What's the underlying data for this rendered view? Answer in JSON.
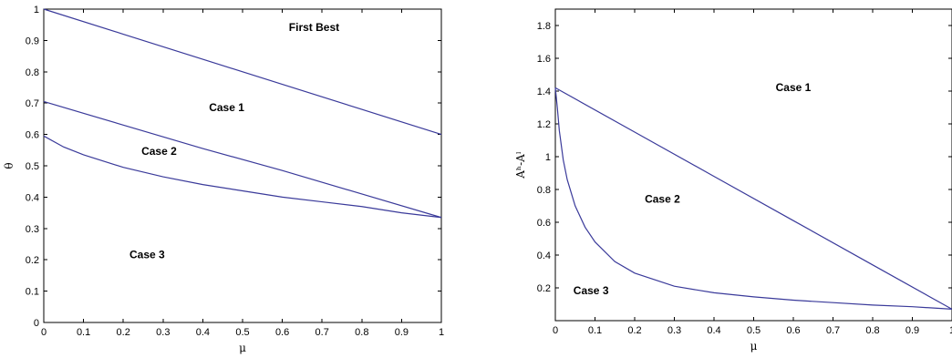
{
  "chart_data": [
    {
      "type": "line",
      "xlabel": "μ",
      "ylabel": "θ",
      "xlim": [
        0,
        1
      ],
      "ylim": [
        0,
        1
      ],
      "xticks": [
        "0",
        "0.1",
        "0.2",
        "0.3",
        "0.4",
        "0.5",
        "0.6",
        "0.7",
        "0.8",
        "0.9",
        "1"
      ],
      "yticks": [
        "0",
        "0.1",
        "0.2",
        "0.3",
        "0.4",
        "0.5",
        "0.6",
        "0.7",
        "0.8",
        "0.9",
        "1"
      ],
      "series": [
        {
          "x": [
            0,
            0.2,
            0.4,
            0.6,
            0.8,
            1
          ],
          "values": [
            1.0,
            0.92,
            0.84,
            0.76,
            0.68,
            0.6
          ]
        },
        {
          "x": [
            0,
            0.2,
            0.4,
            0.6,
            0.8,
            1
          ],
          "values": [
            0.705,
            0.63,
            0.555,
            0.485,
            0.41,
            0.335
          ]
        },
        {
          "x": [
            0,
            0.05,
            0.1,
            0.2,
            0.3,
            0.4,
            0.5,
            0.6,
            0.7,
            0.8,
            0.9,
            1
          ],
          "values": [
            0.595,
            0.56,
            0.535,
            0.495,
            0.465,
            0.44,
            0.42,
            0.4,
            0.385,
            0.37,
            0.35,
            0.335
          ]
        }
      ],
      "annotations": [
        {
          "text": "First Best",
          "x": 0.68,
          "y": 0.93
        },
        {
          "text": "Case 1",
          "x": 0.46,
          "y": 0.675
        },
        {
          "text": "Case 2",
          "x": 0.29,
          "y": 0.535
        },
        {
          "text": "Case 3",
          "x": 0.26,
          "y": 0.205
        }
      ],
      "grid": false
    },
    {
      "type": "line",
      "xlabel": "μ",
      "ylabel": "Aʰ-Aˡ",
      "xlim": [
        0,
        1
      ],
      "ylim": [
        0,
        1.9
      ],
      "xticks": [
        "0",
        "0.1",
        "0.2",
        "0.3",
        "0.4",
        "0.5",
        "0.6",
        "0.7",
        "0.8",
        "0.9",
        "1"
      ],
      "yticks": [
        "0.2",
        "0.4",
        "0.6",
        "0.8",
        "1",
        "1.2",
        "1.4",
        "1.6",
        "1.8"
      ],
      "series": [
        {
          "x": [
            0,
            0.2,
            0.4,
            0.6,
            0.8,
            1
          ],
          "values": [
            1.42,
            1.15,
            0.88,
            0.61,
            0.34,
            0.07
          ]
        },
        {
          "x": [
            0,
            0.005,
            0.01,
            0.02,
            0.03,
            0.05,
            0.075,
            0.1,
            0.15,
            0.2,
            0.3,
            0.4,
            0.5,
            0.6,
            0.7,
            0.8,
            0.9,
            1
          ],
          "values": [
            1.42,
            1.3,
            1.16,
            0.98,
            0.86,
            0.7,
            0.57,
            0.48,
            0.36,
            0.29,
            0.21,
            0.17,
            0.145,
            0.125,
            0.11,
            0.095,
            0.085,
            0.07
          ]
        }
      ],
      "annotations": [
        {
          "text": "Case 1",
          "x": 0.6,
          "y": 1.4
        },
        {
          "text": "Case 2",
          "x": 0.27,
          "y": 0.72
        },
        {
          "text": "Case 3",
          "x": 0.09,
          "y": 0.16
        }
      ],
      "grid": false
    }
  ]
}
